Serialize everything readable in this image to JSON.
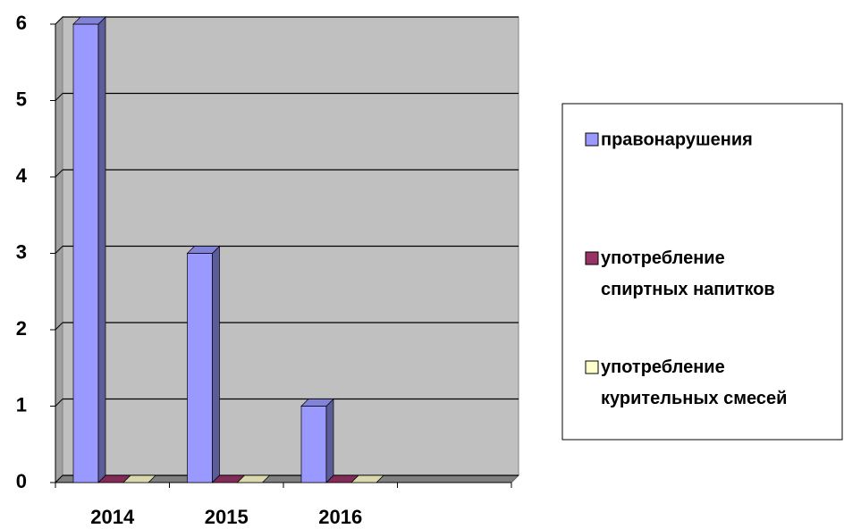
{
  "chart_data": {
    "type": "bar3d",
    "categories": [
      "2014",
      "2015",
      "2016",
      null
    ],
    "series": [
      {
        "name": "правонарушения",
        "color": "#9999ff",
        "values": [
          6,
          3,
          1,
          null
        ]
      },
      {
        "name": "употребление спиртных напитков",
        "color": "#993366",
        "values": [
          0,
          0,
          0,
          null
        ]
      },
      {
        "name": "употребление курительных смесей",
        "color": "#ffffcc",
        "values": [
          0,
          0,
          0,
          null
        ]
      }
    ],
    "ylim": [
      0,
      6
    ],
    "yticks": [
      0,
      1,
      2,
      3,
      4,
      5,
      6
    ],
    "grid": true,
    "legend": "right"
  }
}
